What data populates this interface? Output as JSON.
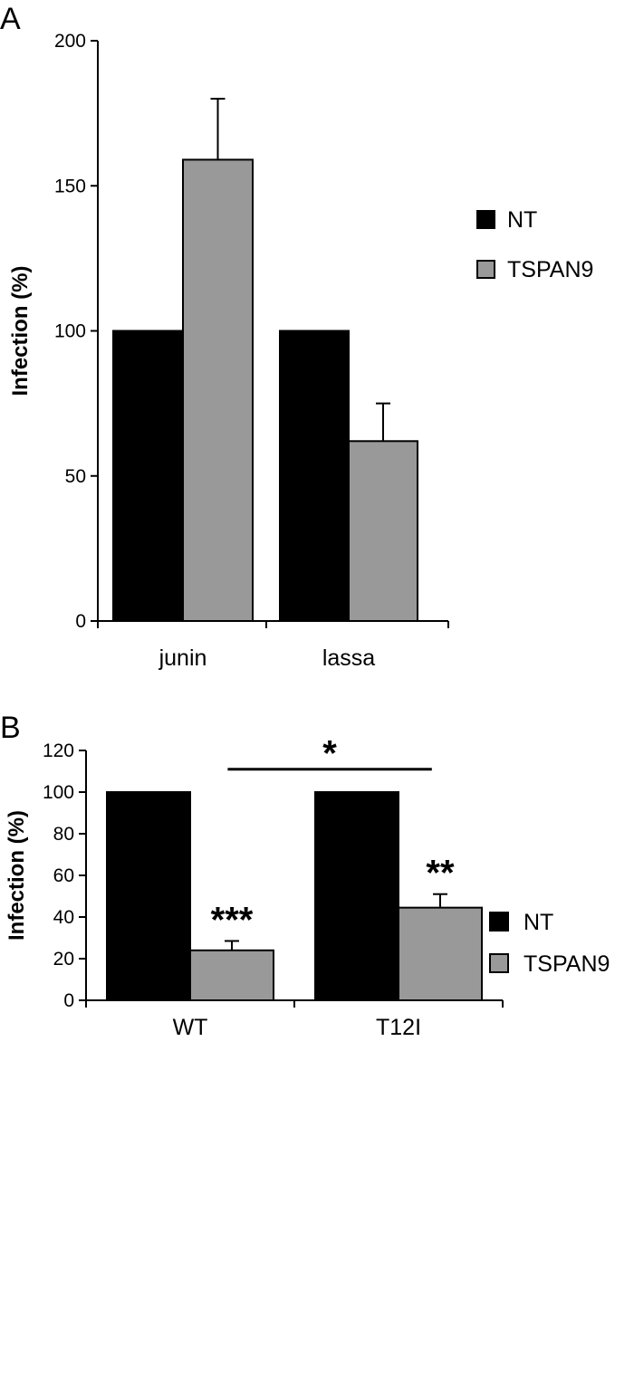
{
  "colors": {
    "NT": "#000000",
    "TSPAN9": "#999999"
  },
  "chart_data": [
    {
      "type": "bar",
      "panel": "A",
      "categories": [
        "junin",
        "lassa"
      ],
      "series": [
        {
          "name": "NT",
          "values": [
            100,
            100
          ],
          "errors": [
            0,
            0
          ]
        },
        {
          "name": "TSPAN9",
          "values": [
            159,
            62
          ],
          "errors": [
            21,
            13
          ]
        }
      ],
      "ylabel": "Infection (%)",
      "ylim": [
        0,
        200
      ],
      "yticks": [
        0,
        50,
        100,
        150,
        200
      ],
      "legend": "right",
      "grid": false,
      "annotations": []
    },
    {
      "type": "bar",
      "panel": "B",
      "categories": [
        "WT",
        "T12I"
      ],
      "series": [
        {
          "name": "NT",
          "values": [
            100,
            100
          ],
          "errors": [
            0,
            0
          ]
        },
        {
          "name": "TSPAN9",
          "values": [
            24,
            44.5
          ],
          "errors": [
            4.5,
            6.5
          ]
        }
      ],
      "ylabel": "Infection (%)",
      "ylim": [
        0,
        120
      ],
      "yticks": [
        0,
        20,
        40,
        60,
        80,
        100,
        120
      ],
      "legend": "right",
      "grid": false,
      "annotations": [
        {
          "text": "***",
          "category": "WT",
          "series": "TSPAN9"
        },
        {
          "text": "**",
          "category": "T12I",
          "series": "TSPAN9"
        },
        {
          "text": "*",
          "spans": [
            "WT",
            "T12I"
          ],
          "y": 111
        }
      ]
    }
  ]
}
